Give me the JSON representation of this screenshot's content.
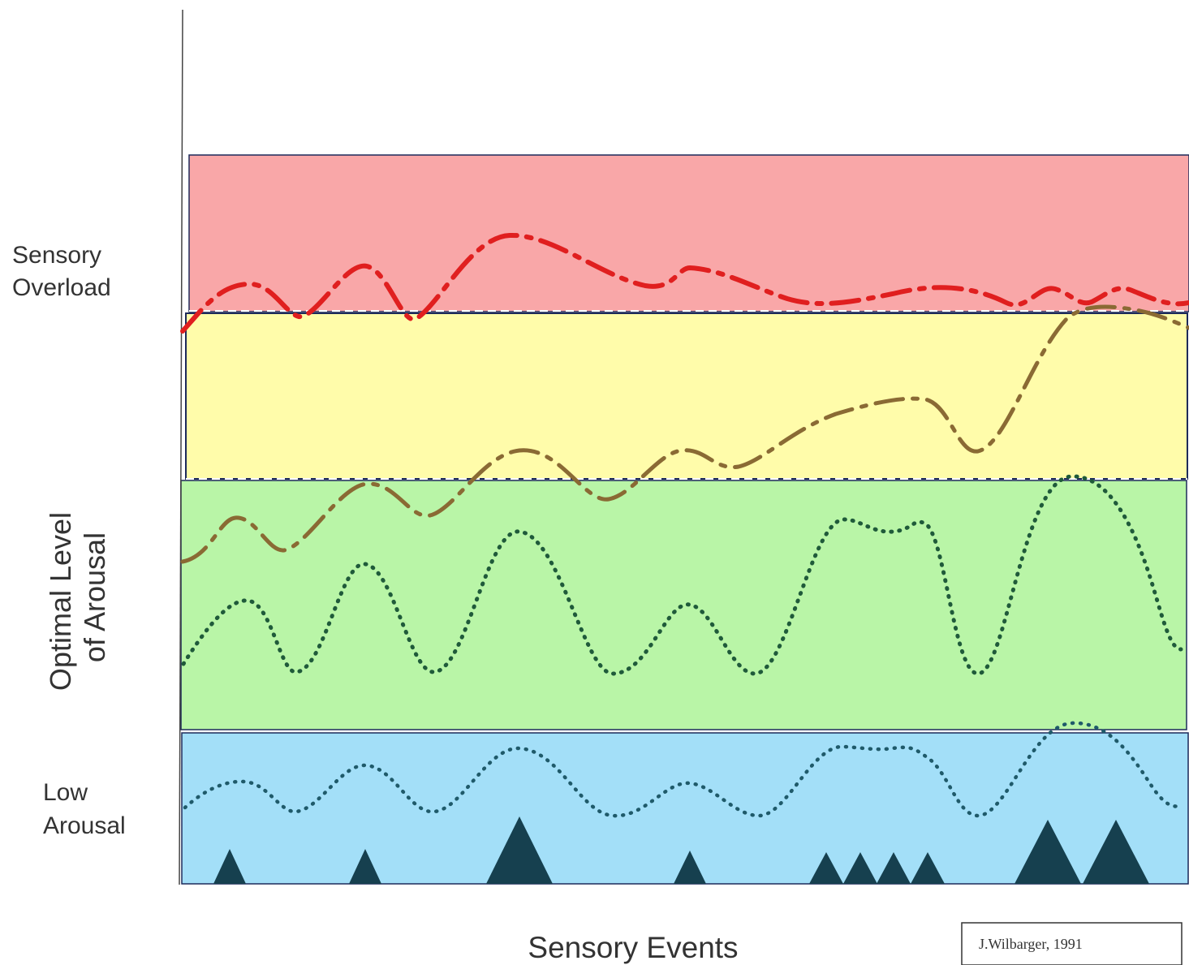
{
  "zones": [
    {
      "id": "overload",
      "label_lines": [
        "Sensory",
        "Overload"
      ],
      "color": "#f9a7a8"
    },
    {
      "id": "transition",
      "label_lines": [],
      "color": "#fffcaa"
    },
    {
      "id": "optimal",
      "label_lines": [
        "Optimal Level",
        "of Arousal"
      ],
      "color": "#b9f5a7"
    },
    {
      "id": "low",
      "label_lines": [
        "Low",
        "Arousal"
      ],
      "color": "#a3dff8"
    }
  ],
  "xaxis_label": "Sensory Events",
  "credit": "J.Wilbarger, 1991",
  "colors": {
    "overload_line": "#e01f1f",
    "transition_line": "#8a6a34",
    "optimal_line": "#1f5a3a",
    "low_line": "#1f5a6a",
    "event_marker": "#16404f",
    "axis": "#444444"
  }
}
